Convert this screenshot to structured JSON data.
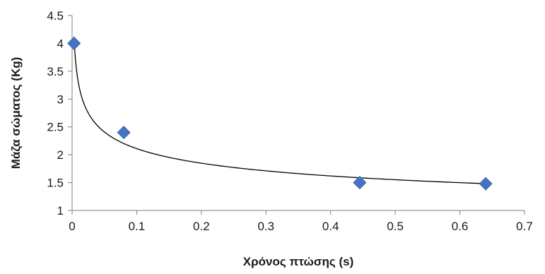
{
  "chart_data": {
    "type": "scatter",
    "xlabel": "Χρόνος πτώσης (s)",
    "ylabel": "Μάζα σώματος (Kg)",
    "xlim": [
      0,
      0.7
    ],
    "ylim": [
      1,
      4.5
    ],
    "x_ticks": [
      "0",
      "0.1",
      "0.2",
      "0.3",
      "0.4",
      "0.5",
      "0.6",
      "0.7"
    ],
    "y_ticks": [
      "1",
      "1.5",
      "2",
      "2.5",
      "3",
      "3.5",
      "4",
      "4.5"
    ],
    "grid": false,
    "legend": "none",
    "series": [
      {
        "marker": "diamond",
        "color": "#4472C4",
        "x": [
          0.003,
          0.08,
          0.445,
          0.64
        ],
        "y": [
          4.0,
          2.4,
          1.5,
          1.48
        ]
      }
    ],
    "trendline": {
      "kind": "power",
      "color": "#000000",
      "x_range": [
        0.003,
        0.64
      ]
    }
  }
}
